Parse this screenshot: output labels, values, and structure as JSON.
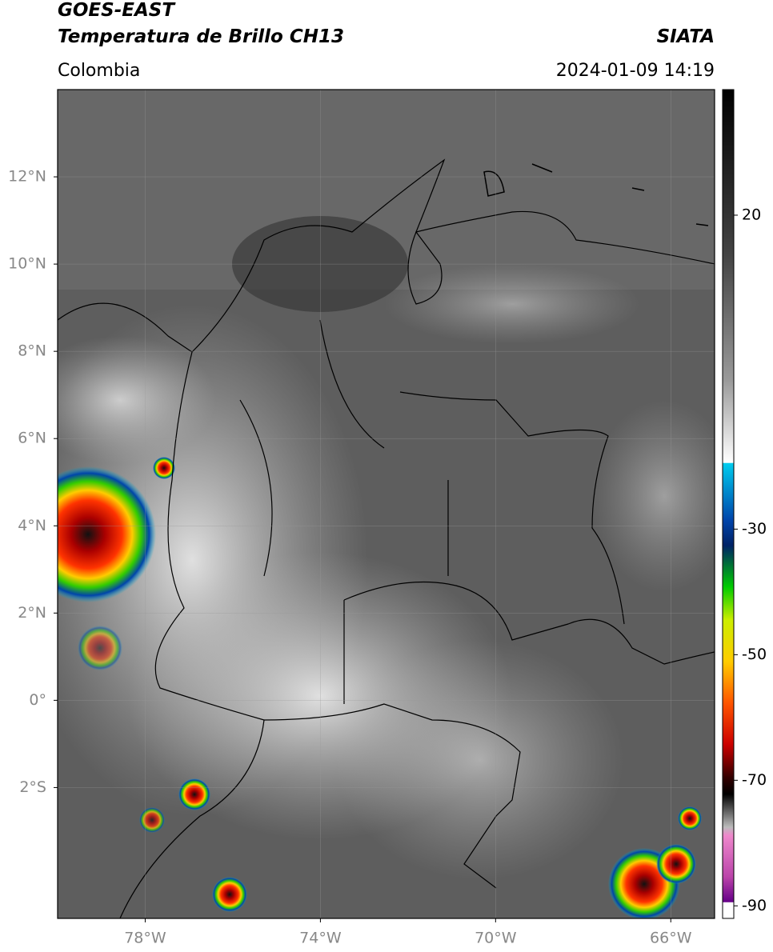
{
  "header": {
    "title_left_1": "GOES-EAST",
    "title_left_2": "Temperatura de Brillo CH13",
    "subtitle_left": "Colombia",
    "title_right": "SIATA",
    "subtitle_right": "2024-01-09 14:19"
  },
  "map": {
    "xlim": [
      -80,
      -65
    ],
    "ylim": [
      -5,
      14
    ],
    "xticks": [
      {
        "value": -78,
        "label": "78°W"
      },
      {
        "value": -74,
        "label": "74°W"
      },
      {
        "value": -70,
        "label": "70°W"
      },
      {
        "value": -66,
        "label": "66°W"
      }
    ],
    "yticks": [
      {
        "value": 12,
        "label": "12°N"
      },
      {
        "value": 10,
        "label": "10°N"
      },
      {
        "value": 8,
        "label": "8°N"
      },
      {
        "value": 6,
        "label": "6°N"
      },
      {
        "value": 4,
        "label": "4°N"
      },
      {
        "value": 2,
        "label": "2°N"
      },
      {
        "value": 0,
        "label": "0°"
      },
      {
        "value": -2,
        "label": "2°S"
      }
    ]
  },
  "colorbar": {
    "lim": [
      -92,
      40
    ],
    "ticks": [
      20,
      -30,
      -50,
      -70,
      -90
    ]
  }
}
